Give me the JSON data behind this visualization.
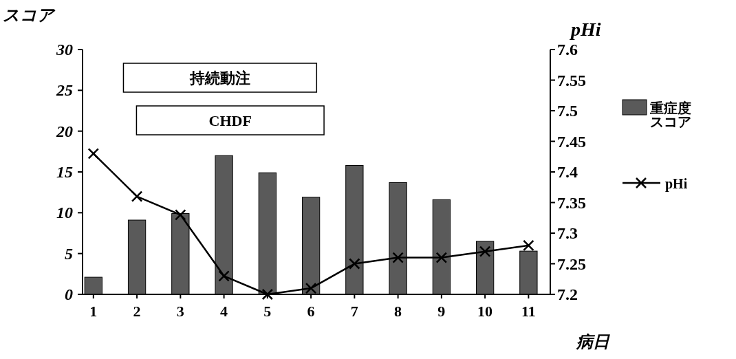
{
  "chart_data": {
    "type": "bar",
    "xlabel": "病日",
    "ylabel": "スコア",
    "y2label": "pHi",
    "x": [
      1,
      2,
      3,
      4,
      5,
      6,
      7,
      8,
      9,
      10,
      11
    ],
    "xlim": [
      0.75,
      11.5
    ],
    "xticks": [
      1,
      2,
      3,
      4,
      5,
      6,
      7,
      8,
      9,
      10,
      11
    ],
    "ylim": [
      0,
      30
    ],
    "yticks": [
      0,
      5,
      10,
      15,
      20,
      25,
      30
    ],
    "y2lim": [
      7.2,
      7.6
    ],
    "y2ticks": [
      7.2,
      7.25,
      7.3,
      7.35,
      7.4,
      7.45,
      7.5,
      7.55,
      7.6
    ],
    "series": [
      {
        "name": "重症度スコア",
        "color": "#5a5a5a",
        "values": [
          2.1,
          9.1,
          9.9,
          17.0,
          14.9,
          11.9,
          15.8,
          13.7,
          11.6,
          6.5,
          5.3
        ]
      },
      {
        "name": "pHi",
        "type": "line",
        "axis": "y2",
        "color": "#000000",
        "marker": "cross",
        "values": [
          7.43,
          7.36,
          7.33,
          7.23,
          7.2,
          7.21,
          7.25,
          7.26,
          7.26,
          7.27,
          7.28
        ]
      }
    ],
    "bands": [
      {
        "axis": "x",
        "from": 1.69,
        "to": 6.13,
        "label": "持続動注",
        "color": "#ffffff"
      },
      {
        "axis": "x",
        "from": 1.99,
        "to": 6.3,
        "label": "CHDF",
        "color": "#ffffff"
      }
    ],
    "legend": "right",
    "grid": false
  }
}
